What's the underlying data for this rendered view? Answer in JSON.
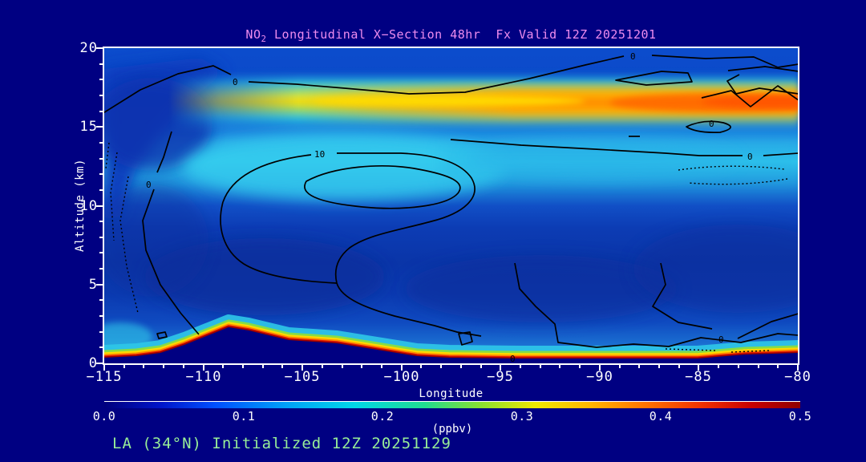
{
  "title": {
    "pre": "NO",
    "sub": "2",
    "post": " Longitudinal X−Section 48hr  Fx Valid 12Z 20251201",
    "color": "#ee8cee"
  },
  "x_axis": {
    "label": "Longitude",
    "ticks": [
      "−115",
      "−110",
      "−105",
      "−100",
      "−95",
      "−90",
      "−85",
      "−80"
    ]
  },
  "y_axis": {
    "label": "Altitude (km)",
    "ticks": [
      "20",
      "15",
      "10",
      "5",
      "0"
    ]
  },
  "colorbar": {
    "unit_label": "(ppbv)",
    "labels": [
      "0.0",
      "0.1",
      "0.2",
      "0.3",
      "0.4",
      "0.5"
    ],
    "stops": [
      "#00007d 0%",
      "#0014c8 8%",
      "#0050ff 16%",
      "#00a0f8 26%",
      "#00d8e8 36%",
      "#20dc90 46%",
      "#88e030 54%",
      "#f0e800 62%",
      "#ffb400 70%",
      "#ff7000 78%",
      "#f03000 86%",
      "#c80000 93%",
      "#8f0000 100%"
    ]
  },
  "annotation": {
    "text": "LA (34°N) Initialized 12Z 20251129",
    "color": "#98ee98"
  },
  "plot": {
    "contour_labels": [
      "0",
      "0",
      "0",
      "0",
      "0",
      "0",
      "0",
      "10"
    ]
  },
  "chart_data": {
    "type": "heatmap",
    "subtype": "filled-contour longitudinal cross-section with overlaid line contours",
    "title": "NO2 Longitudinal X-Section 48hr  Fx Valid 12Z 20251201",
    "xlabel": "Longitude",
    "ylabel": "Altitude (km)",
    "xlim": [
      -115,
      -80
    ],
    "ylim": [
      0,
      20
    ],
    "x_ticks": [
      -115,
      -110,
      -105,
      -100,
      -95,
      -90,
      -85,
      -80
    ],
    "y_ticks": [
      0,
      5,
      10,
      15,
      20
    ],
    "colorbar": {
      "label": "(ppbv)",
      "min": 0.0,
      "max": 0.5,
      "ticks": [
        0.0,
        0.1,
        0.2,
        0.3,
        0.4,
        0.5
      ]
    },
    "grid_estimate": {
      "longitude": [
        -115,
        -110,
        -105,
        -100,
        -95,
        -90,
        -85,
        -80
      ],
      "altitude_km": [
        0.5,
        2,
        5,
        10,
        13,
        16.5,
        19
      ],
      "values_ppbv": [
        [
          0.3,
          0.5,
          0.5,
          0.5,
          0.5,
          0.5,
          0.5,
          0.5
        ],
        [
          0.15,
          0.0,
          0.1,
          0.08,
          0.05,
          0.05,
          0.12,
          0.15
        ],
        [
          0.05,
          0.04,
          0.05,
          0.05,
          0.04,
          0.04,
          0.05,
          0.05
        ],
        [
          0.1,
          0.12,
          0.14,
          0.15,
          0.15,
          0.14,
          0.12,
          0.12
        ],
        [
          0.18,
          0.2,
          0.22,
          0.2,
          0.2,
          0.2,
          0.18,
          0.18
        ],
        [
          0.08,
          0.18,
          0.3,
          0.35,
          0.38,
          0.4,
          0.4,
          0.42
        ],
        [
          0.08,
          0.1,
          0.1,
          0.12,
          0.12,
          0.12,
          0.1,
          0.12
        ]
      ],
      "terrain_height_km": [
        0.3,
        2.5,
        1.3,
        0.3,
        0.2,
        0.2,
        0.2,
        0.5
      ]
    },
    "features": [
      "Thin near-surface maximum layer (~0.45-0.5 ppbv, dark red) hugging terrain below ~1.5 km across all longitudes",
      "Elevated band at ~16-17 km reaching ~0.3 ppbv (yellow) near -105 and ~0.4+ ppbv (orange) east of -95",
      "Mid-tropospheric cyan region (~0.15-0.2 ppbv) around 10-14 km, maximum near -106 to -100",
      "Terrain silhouette peaks near longitude -108.5 at ~2.5 km altitude",
      "Overlaid black line contours labeled 0 and 10 (dotted where negative)"
    ],
    "legend_position": "horizontal colorbar below plot"
  }
}
